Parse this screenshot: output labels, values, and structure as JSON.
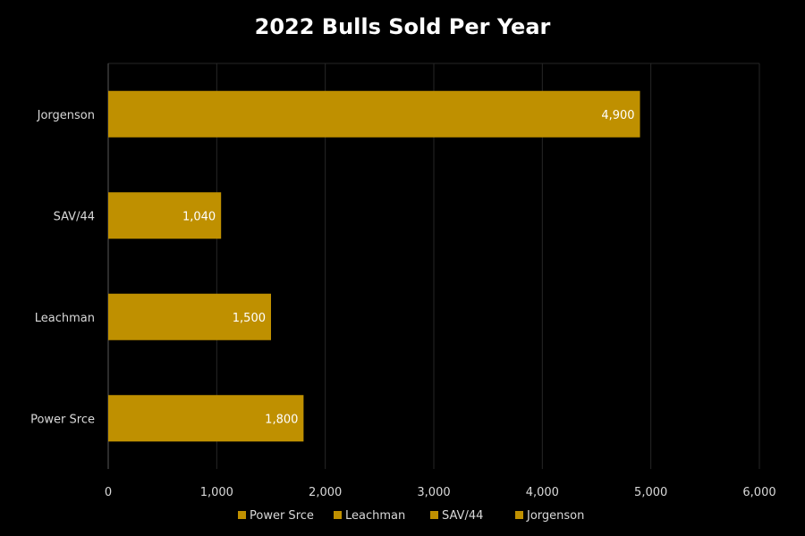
{
  "chart_data": {
    "type": "bar",
    "orientation": "horizontal",
    "title": "2022 Bulls Sold Per Year",
    "categories": [
      "Power Srce",
      "Leachman",
      "SAV/44",
      "Jorgenson"
    ],
    "values": [
      1800,
      1500,
      1040,
      4900
    ],
    "data_labels": [
      "1,800",
      "1,500",
      "1,040",
      "4,900"
    ],
    "xlim": [
      0,
      6000
    ],
    "x_ticks": [
      0,
      1000,
      2000,
      3000,
      4000,
      5000,
      6000
    ],
    "x_tick_labels": [
      "0",
      "1,000",
      "2,000",
      "3,000",
      "4,000",
      "5,000",
      "6,000"
    ],
    "xlabel": "",
    "ylabel": "",
    "grid": true,
    "legend": {
      "placement": "bottom",
      "entries": [
        "Power Srce",
        "Leachman",
        "SAV/44",
        "Jorgenson"
      ]
    },
    "colors": {
      "bar": "#BF9000",
      "background": "#000000",
      "grid": "#262626",
      "text": "#D9D9D9"
    }
  }
}
